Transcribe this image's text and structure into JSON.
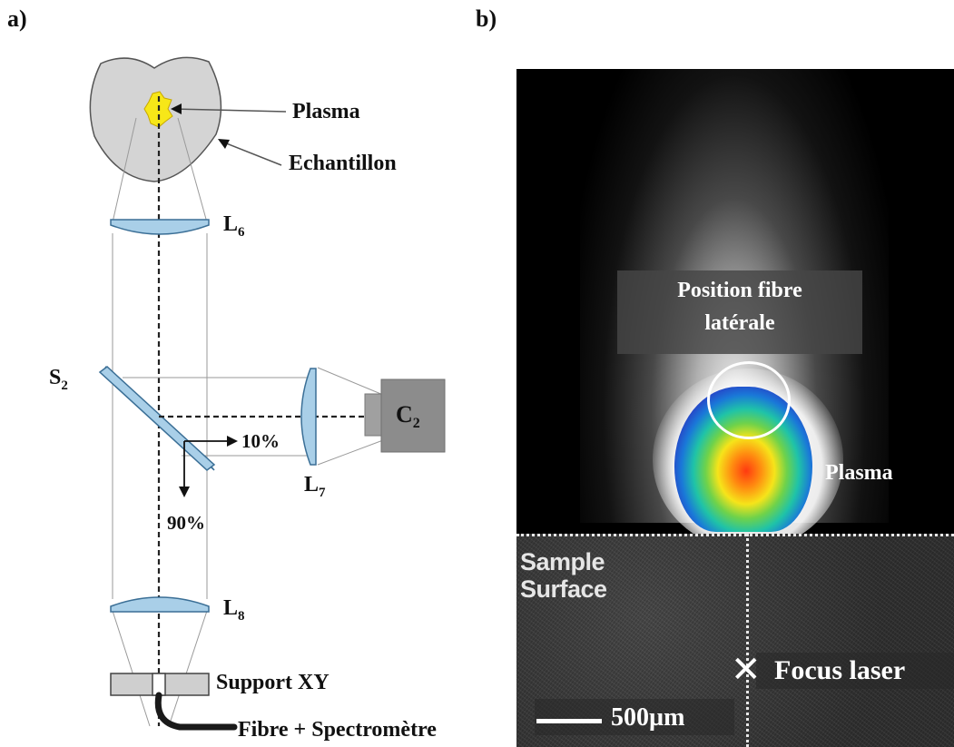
{
  "panel_a": {
    "label": "a)",
    "labels": {
      "plasma": "Plasma",
      "sample": "Echantillon",
      "l6": "L",
      "l6_sub": "6",
      "s2": "S",
      "s2_sub": "2",
      "c2": "C",
      "c2_sub": "2",
      "l7": "L",
      "l7_sub": "7",
      "pct10": "10%",
      "pct90": "90%",
      "l8": "L",
      "l8_sub": "8",
      "support": "Support XY",
      "fibre": "Fibre + Spectromètre"
    }
  },
  "panel_b": {
    "label": "b)",
    "position_line1": "Position  fibre",
    "position_line2": "latérale",
    "plasma": "Plasma",
    "sample_line1": "Sample",
    "sample_line2": "Surface",
    "focus": "Focus laser",
    "focus_mark": "✕",
    "scale": "500µm"
  },
  "colors": {
    "lens": "#a9cfe8",
    "lens_stroke": "#3b6f96",
    "sample_body": "#d4d4d4",
    "plasma_yellow": "#f7e718",
    "camera": "#8c8c8c"
  }
}
